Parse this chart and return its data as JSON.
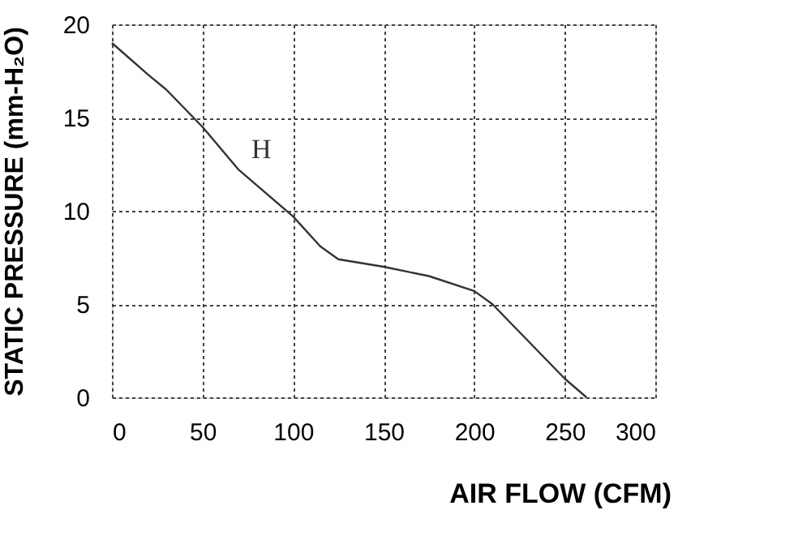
{
  "chart_data": {
    "type": "line",
    "xlabel": "AIR FLOW (CFM)",
    "ylabel": "STATIC PRESSURE (mm-H₂O)",
    "series": [
      {
        "name": "H",
        "color": "#333333",
        "x": [
          0,
          20,
          30,
          50,
          70,
          100,
          115,
          125,
          150,
          175,
          200,
          210,
          230,
          250,
          262
        ],
        "values": [
          19,
          17.3,
          16.5,
          14.5,
          12.2,
          9.7,
          8.1,
          7.4,
          7.0,
          6.5,
          5.7,
          5.0,
          3.0,
          1.0,
          0
        ]
      }
    ],
    "xlim": [
      0,
      300
    ],
    "xticks": [
      0,
      50,
      100,
      150,
      200,
      250,
      300
    ],
    "ylim": [
      0,
      20
    ],
    "yticks": [
      0,
      5,
      10,
      15,
      20
    ],
    "grid": true,
    "line_style": "solid",
    "marker": "none"
  }
}
